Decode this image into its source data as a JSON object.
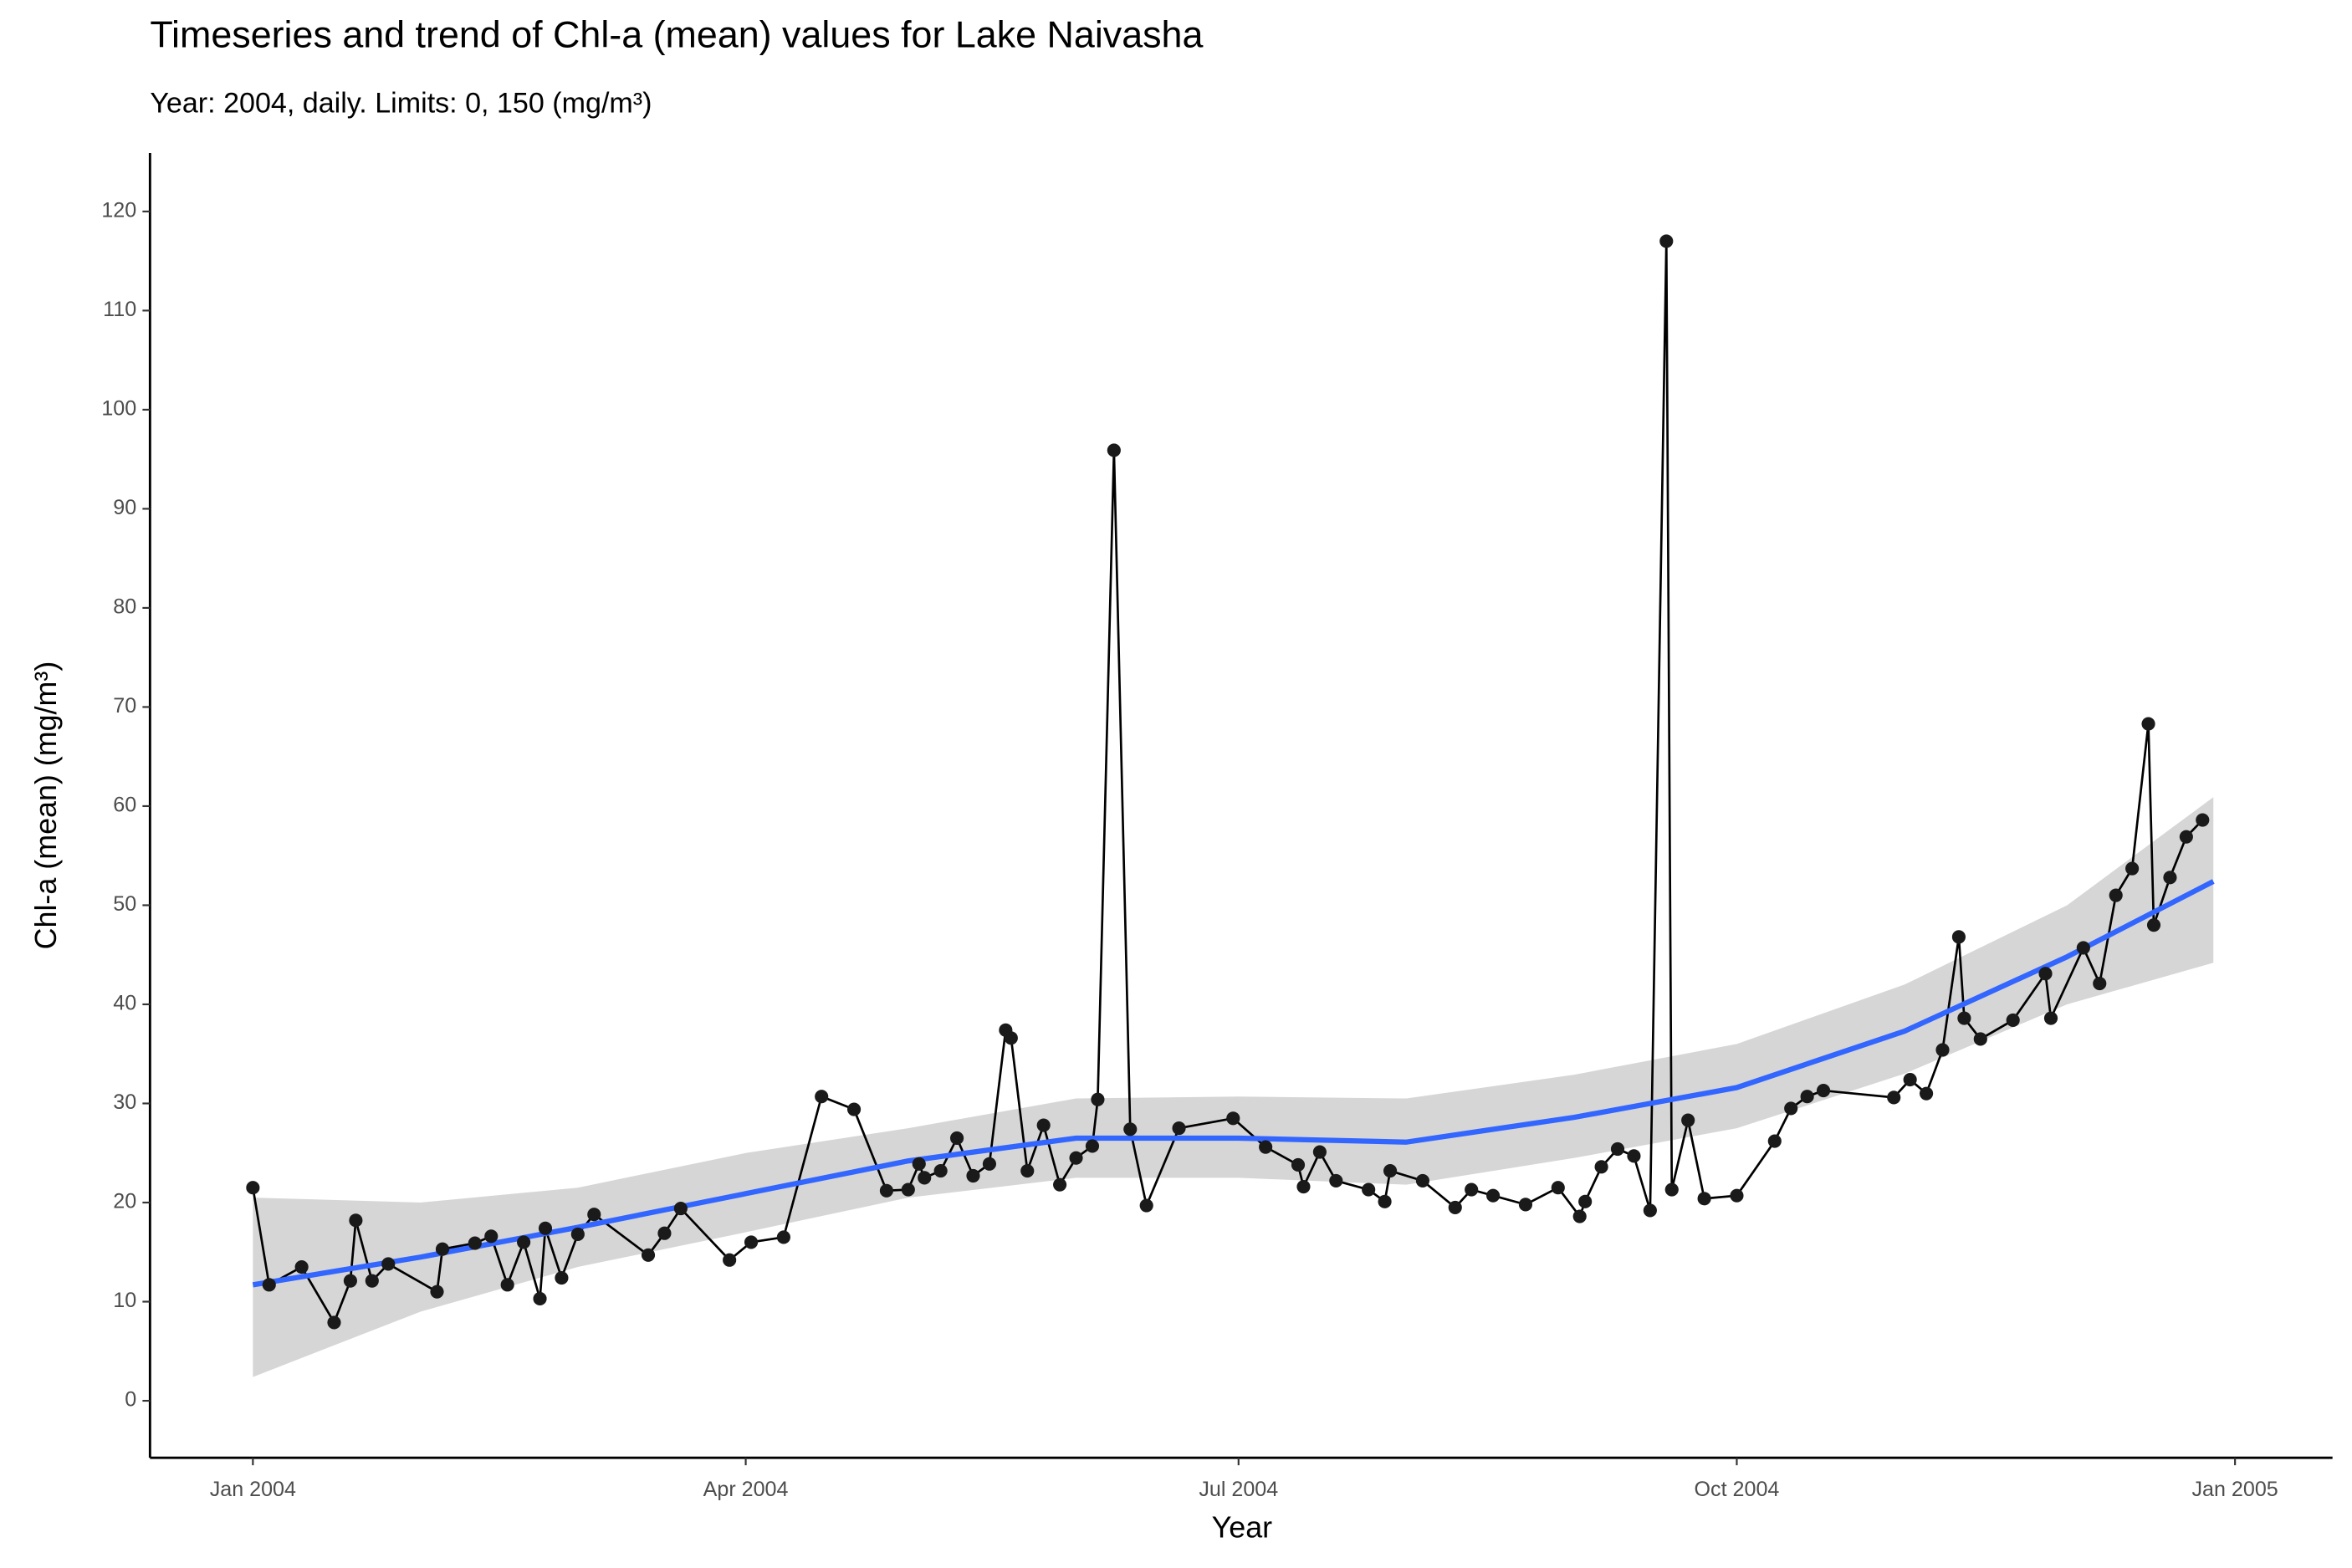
{
  "chart_data": {
    "type": "line",
    "title": "Timeseries and trend of Chl-a (mean) values for Lake Naivasha",
    "subtitle": "Year: 2004, daily. Limits: 0, 150 (mg/m³)",
    "x_label": "Year",
    "y_label": "Chl-a (mean) (mg/m³)",
    "xlim": [
      "2003-12-13",
      "2005-01-19"
    ],
    "xticks": [
      {
        "value": "2004-01-01",
        "label": "Jan 2004"
      },
      {
        "value": "2004-04-01",
        "label": "Apr 2004"
      },
      {
        "value": "2004-07-01",
        "label": "Jul 2004"
      },
      {
        "value": "2004-10-01",
        "label": "Oct 2004"
      },
      {
        "value": "2005-01-01",
        "label": "Jan 2005"
      }
    ],
    "ylim": [
      -5.75,
      125.9
    ],
    "yticks": [
      0,
      10,
      20,
      30,
      40,
      50,
      60,
      70,
      80,
      90,
      100,
      110,
      120
    ],
    "grid": false,
    "x": [
      "2004-01-01",
      "2004-01-04",
      "2004-01-10",
      "2004-01-16",
      "2004-01-19",
      "2004-01-20",
      "2004-01-23",
      "2004-01-26",
      "2004-02-04",
      "2004-02-05",
      "2004-02-11",
      "2004-02-14",
      "2004-02-17",
      "2004-02-20",
      "2004-02-23",
      "2004-02-24",
      "2004-02-27",
      "2004-03-01",
      "2004-03-04",
      "2004-03-14",
      "2004-03-17",
      "2004-03-20",
      "2004-03-29",
      "2004-04-02",
      "2004-04-08",
      "2004-04-15",
      "2004-04-21",
      "2004-04-27",
      "2004-05-01",
      "2004-05-03",
      "2004-05-04",
      "2004-05-07",
      "2004-05-10",
      "2004-05-13",
      "2004-05-16",
      "2004-05-19",
      "2004-05-20",
      "2004-05-23",
      "2004-05-26",
      "2004-05-29",
      "2004-06-01",
      "2004-06-04",
      "2004-06-05",
      "2004-06-08",
      "2004-06-11",
      "2004-06-14",
      "2004-06-20",
      "2004-06-30",
      "2004-07-06",
      "2004-07-12",
      "2004-07-13",
      "2004-07-16",
      "2004-07-19",
      "2004-07-25",
      "2004-07-28",
      "2004-07-29",
      "2004-08-04",
      "2004-08-10",
      "2004-08-13",
      "2004-08-17",
      "2004-08-23",
      "2004-08-29",
      "2004-09-02",
      "2004-09-03",
      "2004-09-06",
      "2004-09-09",
      "2004-09-12",
      "2004-09-15",
      "2004-09-18",
      "2004-09-19",
      "2004-09-22",
      "2004-09-25",
      "2004-10-01",
      "2004-10-08",
      "2004-10-11",
      "2004-10-14",
      "2004-10-17",
      "2004-10-30",
      "2004-11-02",
      "2004-11-05",
      "2004-11-08",
      "2004-11-11",
      "2004-11-12",
      "2004-11-15",
      "2004-11-21",
      "2004-11-27",
      "2004-11-28",
      "2004-12-04",
      "2004-12-07",
      "2004-12-10",
      "2004-12-13",
      "2004-12-16",
      "2004-12-17",
      "2004-12-20",
      "2004-12-23",
      "2004-12-26"
    ],
    "series": [
      {
        "color": "#000000",
        "point_color": "#1a1a1a",
        "values": [
          21.5,
          11.7,
          13.5,
          7.9,
          12.1,
          18.2,
          12.1,
          13.8,
          11.0,
          15.3,
          15.9,
          16.6,
          11.7,
          16.0,
          10.3,
          17.4,
          12.4,
          16.8,
          18.8,
          14.7,
          16.9,
          19.4,
          14.2,
          16.0,
          16.5,
          30.7,
          29.4,
          21.2,
          21.3,
          23.9,
          22.5,
          23.2,
          26.5,
          22.7,
          23.9,
          37.4,
          36.6,
          23.2,
          27.8,
          21.8,
          24.5,
          25.7,
          30.4,
          95.9,
          27.4,
          19.7,
          27.5,
          28.5,
          25.6,
          23.8,
          21.6,
          25.1,
          22.2,
          21.3,
          20.1,
          23.2,
          22.2,
          19.5,
          21.3,
          20.7,
          19.8,
          21.5,
          18.6,
          20.1,
          23.6,
          25.4,
          24.7,
          19.2,
          117.0,
          21.3,
          28.3,
          20.4,
          20.7,
          26.2,
          29.5,
          30.7,
          31.3,
          30.6,
          32.4,
          31.0,
          35.4,
          46.8,
          38.6,
          36.5,
          38.4,
          43.1,
          38.6,
          45.7,
          42.1,
          51.0,
          53.7,
          68.3,
          48.0,
          52.8,
          56.9,
          58.6
        ]
      }
    ],
    "smooth": {
      "color": "#3366ff",
      "band_color": "#d6d6d6",
      "x": [
        "2004-01-01",
        "2004-02-01",
        "2004-03-01",
        "2004-04-01",
        "2004-05-01",
        "2004-06-01",
        "2004-07-01",
        "2004-08-01",
        "2004-09-01",
        "2004-10-01",
        "2004-11-01",
        "2004-12-01",
        "2004-12-28"
      ],
      "values": [
        11.7,
        14.5,
        17.5,
        20.9,
        24.2,
        26.5,
        26.5,
        26.1,
        28.6,
        31.6,
        37.3,
        44.8,
        52.4
      ],
      "lower": [
        2.4,
        9.0,
        13.5,
        17.0,
        20.5,
        22.5,
        22.5,
        21.8,
        24.5,
        27.5,
        33.0,
        40.0,
        44.2
      ],
      "upper": [
        20.5,
        20.0,
        21.5,
        25.0,
        27.5,
        30.5,
        30.7,
        30.5,
        32.9,
        36.0,
        42.0,
        50.0,
        60.9
      ]
    }
  }
}
